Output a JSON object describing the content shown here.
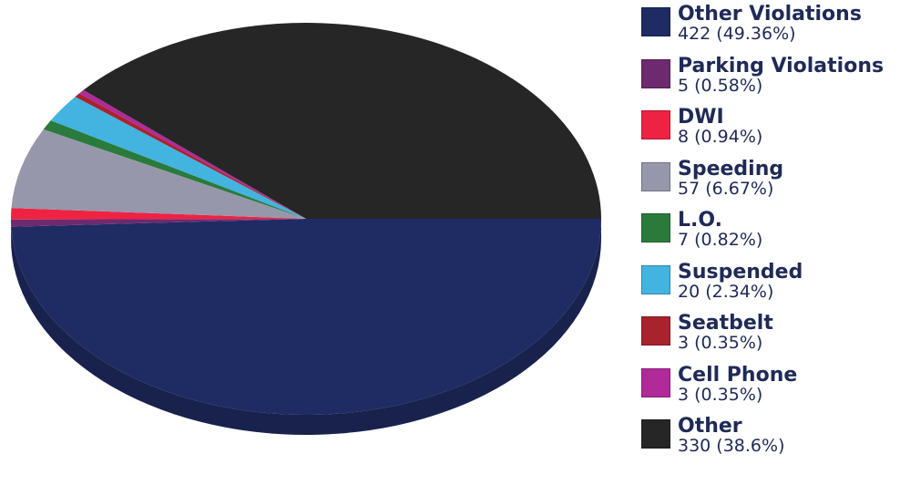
{
  "chart_data": {
    "type": "pie",
    "title": "",
    "slices": [
      {
        "label": "Other Violations",
        "value": 422,
        "percent_text": "49.36%",
        "color": "#1f2b63"
      },
      {
        "label": "Parking Violations",
        "value": 5,
        "percent_text": "0.58%",
        "color": "#6e2a6e"
      },
      {
        "label": "DWI",
        "value": 8,
        "percent_text": "0.94%",
        "color": "#ee2343"
      },
      {
        "label": "Speeding",
        "value": 57,
        "percent_text": "6.67%",
        "color": "#9797ab"
      },
      {
        "label": "L.O.",
        "value": 7,
        "percent_text": "0.82%",
        "color": "#2a7a3c"
      },
      {
        "label": "Suspended",
        "value": 20,
        "percent_text": "2.34%",
        "color": "#43b3e0"
      },
      {
        "label": "Seatbelt",
        "value": 3,
        "percent_text": "0.35%",
        "color": "#a8232e"
      },
      {
        "label": "Cell Phone",
        "value": 3,
        "percent_text": "0.35%",
        "color": "#b02a9a"
      },
      {
        "label": "Other",
        "value": 330,
        "percent_text": "38.6%",
        "color": "#262626"
      }
    ],
    "legend_position": "right"
  }
}
